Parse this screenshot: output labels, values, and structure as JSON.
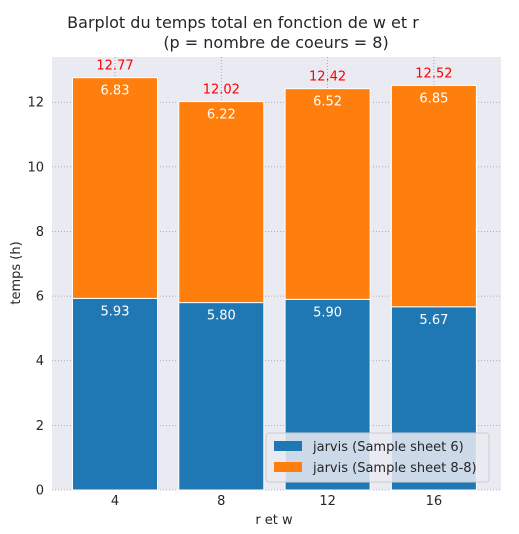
{
  "chart_data": {
    "type": "bar",
    "stacked": true,
    "title": "Barplot du temps total en fonction de w et r",
    "subtitle": "(p = nombre de coeurs = 8)",
    "xlabel": "r et w",
    "ylabel": "temps (h)",
    "categories": [
      "4",
      "8",
      "12",
      "16"
    ],
    "series": [
      {
        "name": "jarvis (Sample sheet 6)",
        "color": "#1f77b4",
        "values": [
          5.93,
          5.8,
          5.9,
          5.67
        ],
        "labels": [
          "5.93",
          "5.80",
          "5.90",
          "5.67"
        ]
      },
      {
        "name": "jarvis (Sample sheet 8-8)",
        "color": "#ff7f0e",
        "values": [
          6.83,
          6.22,
          6.52,
          6.85
        ],
        "labels": [
          "6.83",
          "6.22",
          "6.52",
          "6.85"
        ]
      }
    ],
    "totals": [
      "12.77",
      "12.02",
      "12.42",
      "12.52"
    ],
    "total_color": "#ff0000",
    "yticks": [
      "0",
      "2",
      "4",
      "6",
      "8",
      "10",
      "12"
    ],
    "ylim": [
      0,
      13.4
    ],
    "grid": true,
    "legend_position": "lower-right",
    "background": "#eaeaf2"
  }
}
